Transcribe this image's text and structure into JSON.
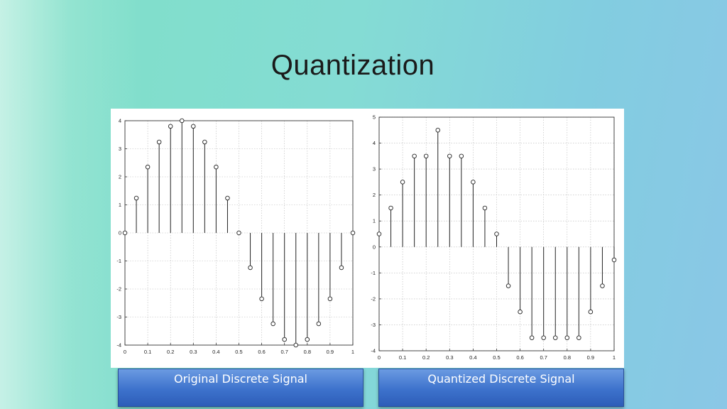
{
  "page": {
    "title": "Quantization"
  },
  "captions": {
    "left": "Original Discrete Signal",
    "right": "Quantized Discrete Signal"
  },
  "chart_data": [
    {
      "type": "stem",
      "xlim": [
        0,
        1
      ],
      "ylim": [
        -4,
        4
      ],
      "xticks": [
        0,
        0.1,
        0.2,
        0.3,
        0.4,
        0.5,
        0.6,
        0.7,
        0.8,
        0.9,
        1
      ],
      "yticks": [
        -4,
        -3,
        -2,
        -1,
        0,
        1,
        2,
        3,
        4
      ],
      "grid": true,
      "x": [
        0,
        0.05,
        0.1,
        0.15,
        0.2,
        0.25,
        0.3,
        0.35,
        0.4,
        0.45,
        0.5,
        0.55,
        0.6,
        0.65,
        0.7,
        0.75,
        0.8,
        0.85,
        0.9,
        0.95,
        1
      ],
      "values": [
        0,
        1.24,
        2.35,
        3.24,
        3.8,
        4,
        3.8,
        3.24,
        2.35,
        1.24,
        0,
        -1.24,
        -2.35,
        -3.24,
        -3.8,
        -4,
        -3.8,
        -3.24,
        -2.35,
        -1.24,
        0
      ]
    },
    {
      "type": "stem",
      "xlim": [
        0,
        1
      ],
      "ylim": [
        -4,
        5
      ],
      "xticks": [
        0,
        0.1,
        0.2,
        0.3,
        0.4,
        0.5,
        0.6,
        0.7,
        0.8,
        0.9,
        1
      ],
      "yticks": [
        -4,
        -3,
        -2,
        -1,
        0,
        1,
        2,
        3,
        4,
        5
      ],
      "grid": true,
      "x": [
        0,
        0.05,
        0.1,
        0.15,
        0.2,
        0.25,
        0.3,
        0.35,
        0.4,
        0.45,
        0.5,
        0.55,
        0.6,
        0.65,
        0.7,
        0.75,
        0.8,
        0.85,
        0.9,
        0.95,
        1
      ],
      "values": [
        0.5,
        1.5,
        2.5,
        3.5,
        3.5,
        4.5,
        3.5,
        3.5,
        2.5,
        1.5,
        0.5,
        -1.5,
        -2.5,
        -3.5,
        -3.5,
        -3.5,
        -3.5,
        -3.5,
        -2.5,
        -1.5,
        -0.5
      ]
    }
  ]
}
